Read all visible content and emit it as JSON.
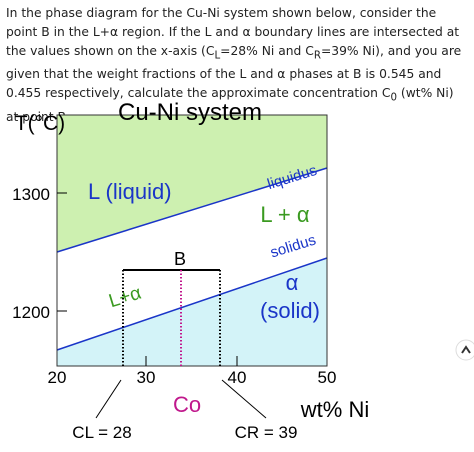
{
  "question": {
    "parts": [
      "In the phase diagram for the Cu-Ni system shown below, consider the point B in the L+α region. If the L and α boundary lines are intersected at the values shown on the x-axis (C",
      "L",
      "=28% Ni and C",
      "R",
      "=39% Ni), and you are given that the weight fractions of the L and α phases at B is 0.545 and 0.455 respectively, calculate the approximate concentration C",
      "0",
      " (wt% Ni) at point B."
    ]
  },
  "diagram": {
    "title": "Cu-Ni system",
    "y_axis_label": "T(°C)",
    "x_axis_label": "wt% Ni",
    "x_tick_labels": [
      "20",
      "30",
      "40",
      "50"
    ],
    "y_tick_labels": [
      "1300",
      "1200"
    ],
    "regions": {
      "liquid": "L (liquid)",
      "two_phase_right": "L + α",
      "two_phase_left": "L+α",
      "solid_phase": "α",
      "solid_note": "(solid)"
    },
    "lines": {
      "liquidus": "liquidus",
      "solidus": "solidus"
    },
    "point": "B",
    "c0": "Co",
    "cl": "CL = 28",
    "cr": "CR = 39"
  }
}
